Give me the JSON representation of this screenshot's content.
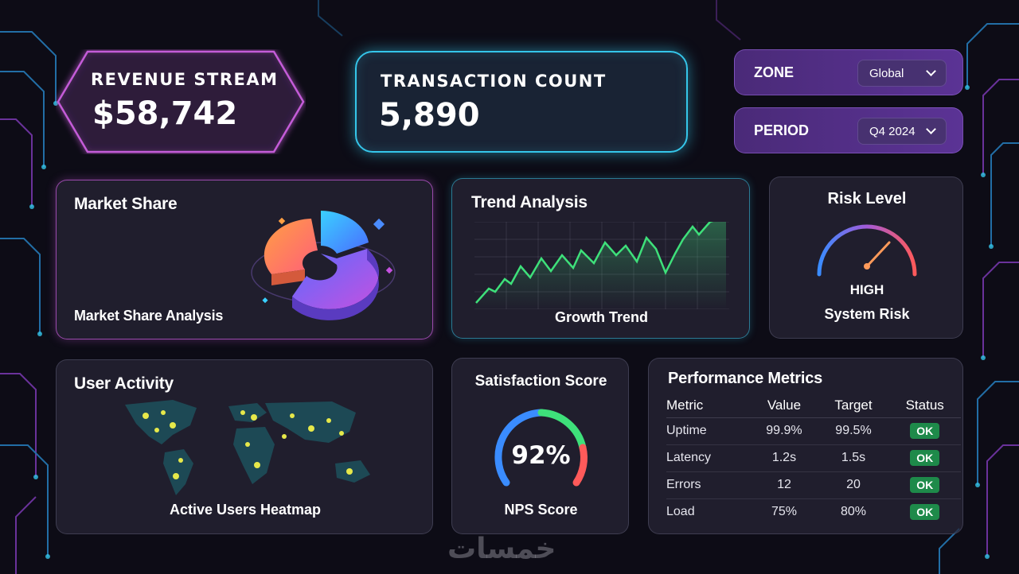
{
  "kpis": {
    "revenue": {
      "label": "REVENUE STREAM",
      "value": "$58,742"
    },
    "transactions": {
      "label": "TRANSACTION COUNT",
      "value": "5,890"
    }
  },
  "filters": [
    {
      "label": "ZONE",
      "value": "Global"
    },
    {
      "label": "PERIOD",
      "value": "Q4 2024"
    }
  ],
  "market_share": {
    "title": "Market Share",
    "caption": "Market Share Analysis"
  },
  "trend": {
    "title": "Trend Analysis",
    "caption": "Growth Trend"
  },
  "risk": {
    "title": "Risk Level",
    "level": "HIGH",
    "caption": "System Risk"
  },
  "user_activity": {
    "title": "User Activity",
    "caption": "Active Users Heatmap"
  },
  "satisfaction": {
    "title": "Satisfaction Score",
    "value": "92%",
    "caption": "NPS Score"
  },
  "performance": {
    "title": "Performance Metrics",
    "columns": [
      "Metric",
      "Value",
      "Target",
      "Status"
    ],
    "rows": [
      {
        "metric": "Uptime",
        "value": "99.9%",
        "target": "99.5%",
        "status": "OK"
      },
      {
        "metric": "Latency",
        "value": "1.2s",
        "target": "1.5s",
        "status": "OK"
      },
      {
        "metric": "Errors",
        "value": "12",
        "target": "20",
        "status": "OK"
      },
      {
        "metric": "Load",
        "value": "75%",
        "target": "80%",
        "status": "OK"
      }
    ]
  },
  "watermark": "خمسات",
  "colors": {
    "accent_pink": "#c45bd8",
    "accent_cyan": "#35c6ea",
    "trend_green": "#3ee07a",
    "status_green": "#1e8a4a",
    "filter_purple": "#5b3395"
  }
}
